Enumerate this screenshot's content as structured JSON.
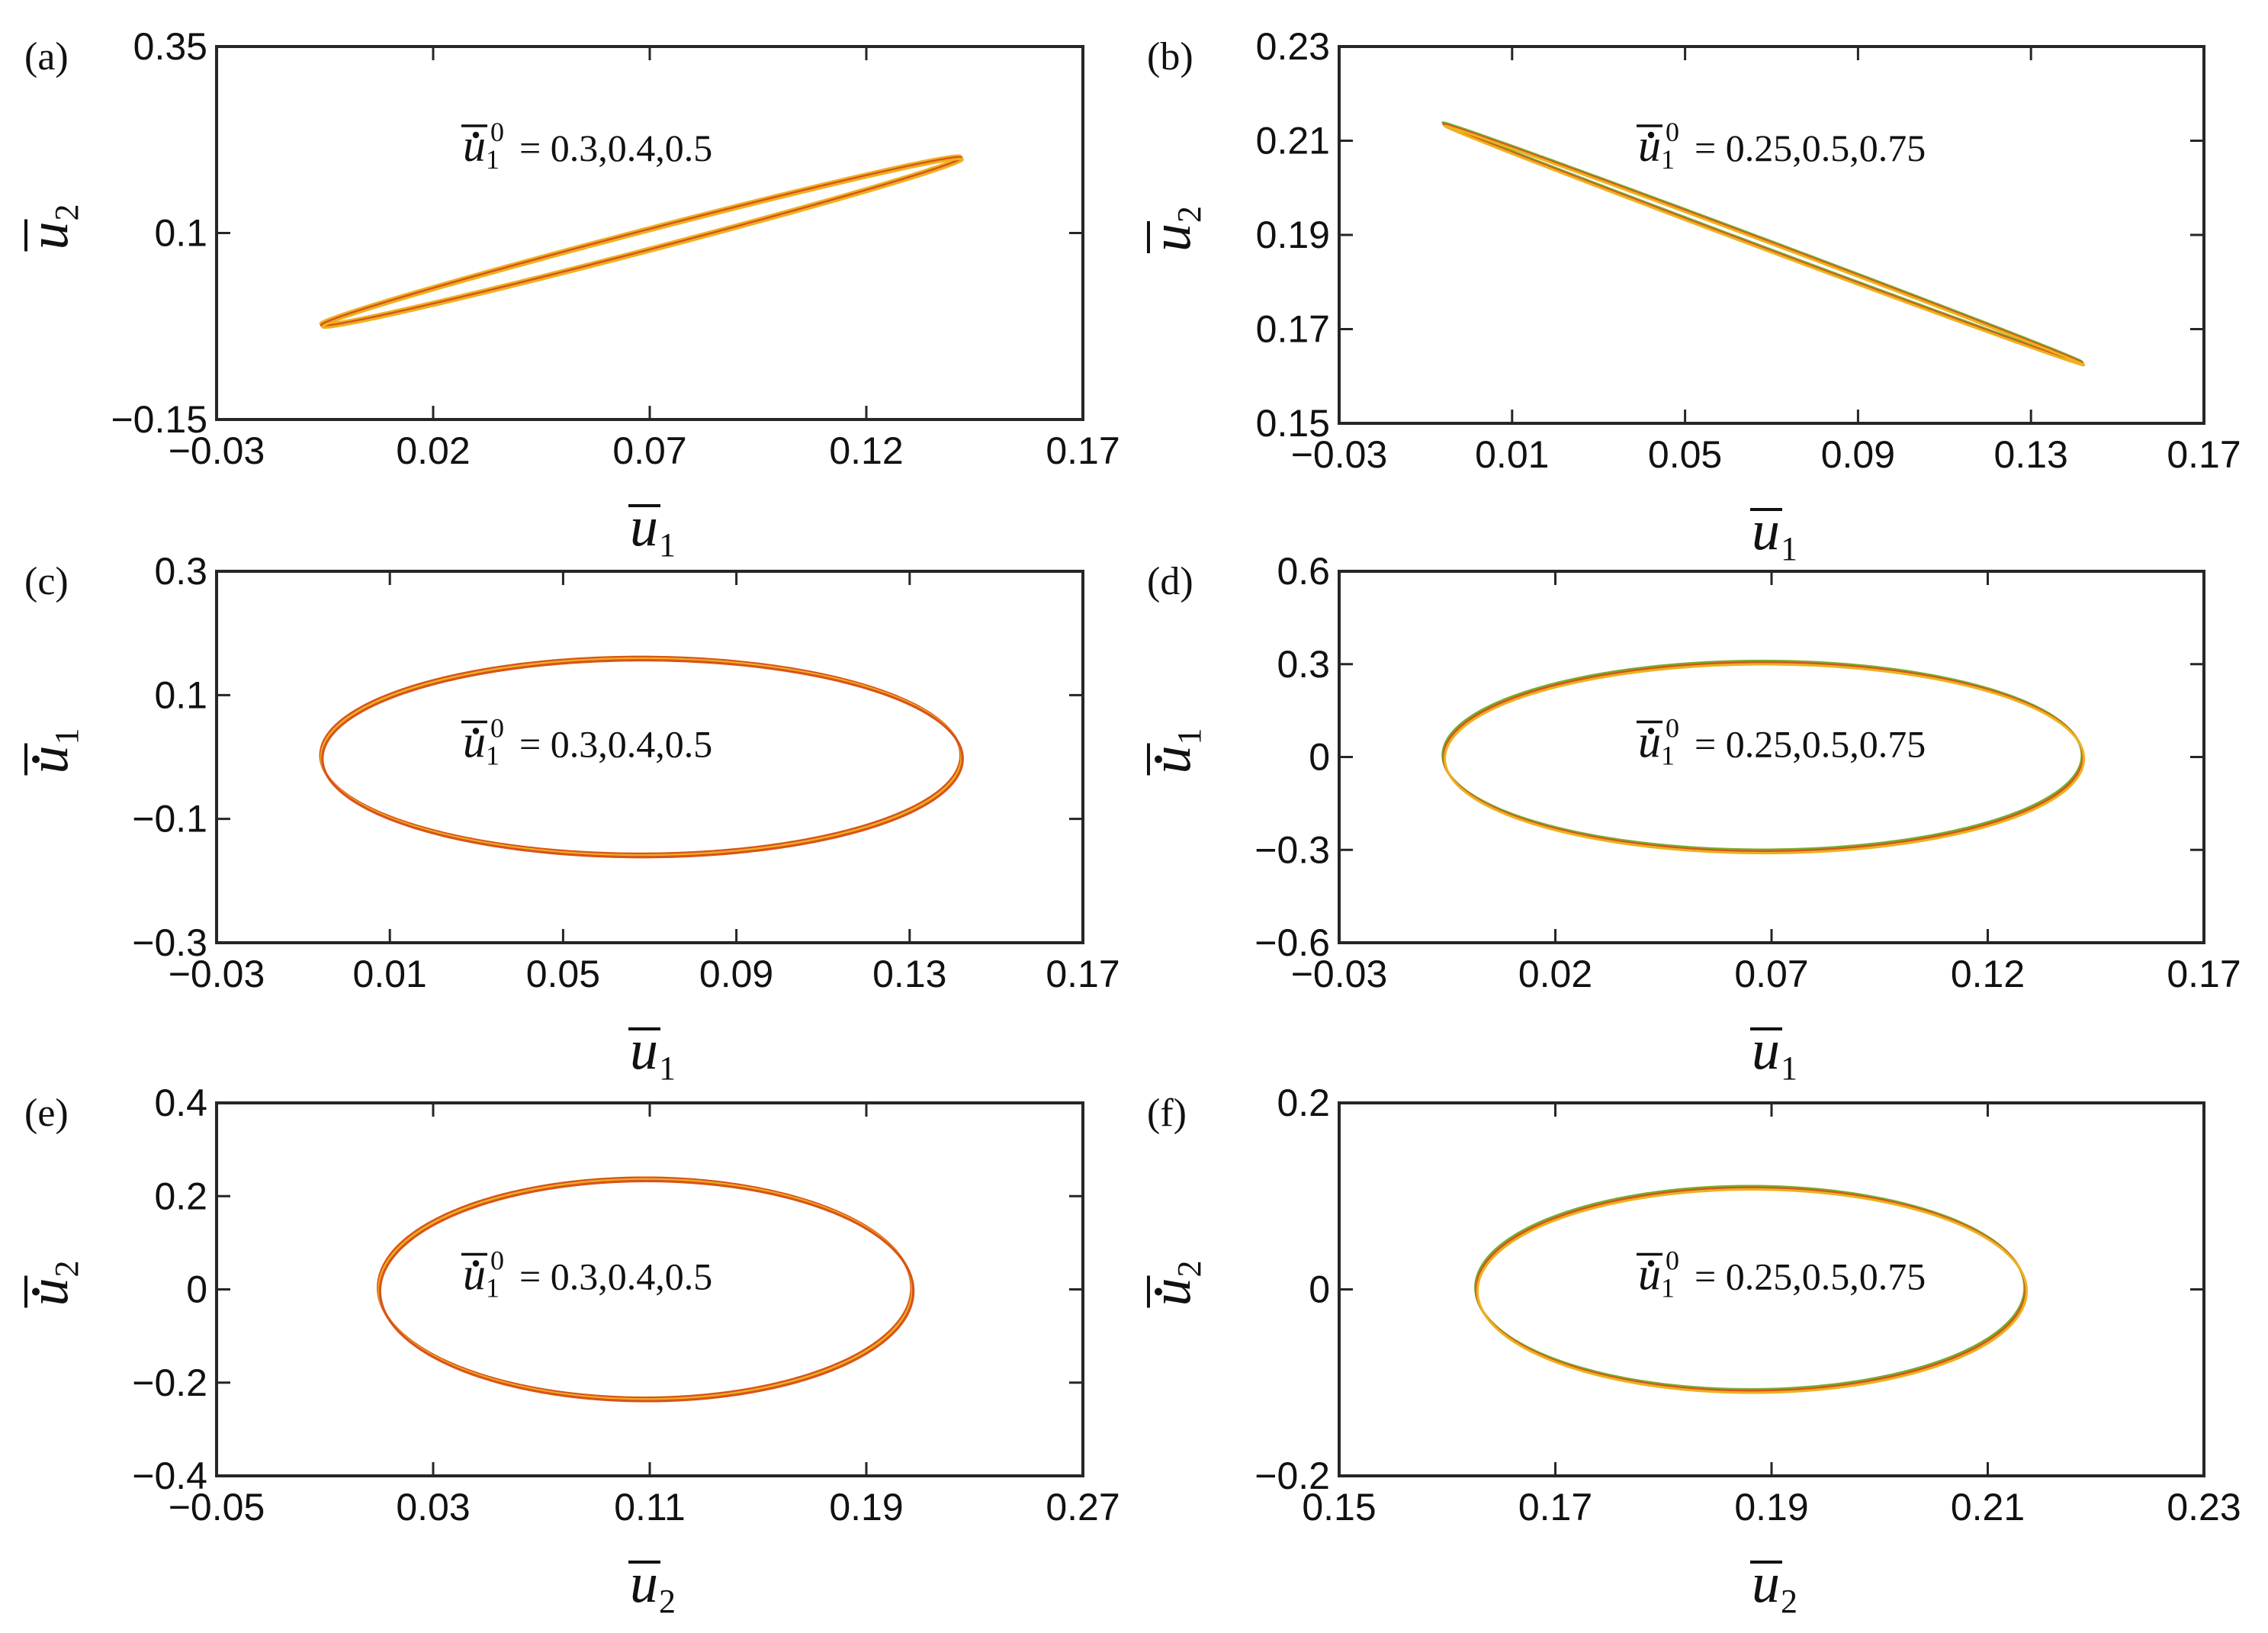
{
  "colors": {
    "series": [
      "#EDB120",
      "#D95319",
      "#77AC30"
    ],
    "axis": "#262626"
  },
  "chart_data": [
    {
      "id": "a",
      "panel_label": "(a)",
      "type": "line",
      "xlabel": {
        "var": "u",
        "sub": "1",
        "bar": true,
        "dot": false
      },
      "ylabel": {
        "var": "u",
        "sub": "2",
        "bar": true,
        "dot": false
      },
      "xlim": [
        -0.03,
        0.17
      ],
      "ylim": [
        -0.15,
        0.35
      ],
      "xticks": [
        -0.03,
        0.02,
        0.07,
        0.12,
        0.17
      ],
      "xtick_labels": [
        "−0.03",
        "0.02",
        "0.07",
        "0.12",
        "0.17"
      ],
      "yticks": [
        -0.15,
        0.1,
        0.35
      ],
      "ytick_labels": [
        "−0.15",
        "0.1",
        "0.35"
      ],
      "annotation": {
        "var": "u",
        "sup": "0",
        "sub": "1",
        "text": "= 0.3,0.4,0.5"
      },
      "curve": {
        "kind": "ellipse",
        "cx": 0.0681,
        "cy": 0.0885,
        "a": 0.0739,
        "b": 0.113,
        "phase_deg": 7,
        "yscale": 1,
        "ysub": 0
      },
      "series": [
        {
          "name": "0.3",
          "color": "#EDB120"
        },
        {
          "name": "0.4",
          "color": "#D95319"
        },
        {
          "name": "0.5",
          "color": "#EDB120"
        }
      ]
    },
    {
      "id": "b",
      "panel_label": "(b)",
      "type": "line",
      "xlabel": {
        "var": "u",
        "sub": "1",
        "bar": true,
        "dot": false
      },
      "ylabel": {
        "var": "u",
        "sub": "2",
        "bar": true,
        "dot": false
      },
      "xlim": [
        -0.03,
        0.17
      ],
      "ylim": [
        0.15,
        0.23
      ],
      "xticks": [
        -0.03,
        0.01,
        0.05,
        0.09,
        0.13,
        0.17
      ],
      "xtick_labels": [
        "−0.03",
        "0.01",
        "0.05",
        "0.09",
        "0.13",
        "0.17"
      ],
      "yticks": [
        0.15,
        0.17,
        0.19,
        0.21,
        0.23
      ],
      "ytick_labels": [
        "0.15",
        "0.17",
        "0.19",
        "0.21",
        "0.23"
      ],
      "annotation": {
        "var": "u",
        "sup": "0",
        "sub": "1",
        "text": "= 0.25,0.5,0.75"
      },
      "curve": {
        "kind": "ellipse",
        "cx": 0.0681,
        "cy": 0.1881,
        "a": 0.0739,
        "b": 0.0254,
        "phase_deg": 178,
        "yscale": 1,
        "ysub": 0
      },
      "series": [
        {
          "name": "0.25",
          "color": "#77AC30"
        },
        {
          "name": "0.5",
          "color": "#D95319"
        },
        {
          "name": "0.75",
          "color": "#EDB120"
        }
      ]
    },
    {
      "id": "c",
      "panel_label": "(c)",
      "type": "line",
      "xlabel": {
        "var": "u",
        "sub": "1",
        "bar": true,
        "dot": false
      },
      "ylabel": {
        "var": "u",
        "sub": "1",
        "bar": true,
        "dot": true
      },
      "xlim": [
        -0.03,
        0.17
      ],
      "ylim": [
        -0.3,
        0.3
      ],
      "xticks": [
        -0.03,
        0.01,
        0.05,
        0.09,
        0.13,
        0.17
      ],
      "xtick_labels": [
        "−0.03",
        "0.01",
        "0.05",
        "0.09",
        "0.13",
        "0.17"
      ],
      "yticks": [
        -0.3,
        -0.1,
        0.1,
        0.3
      ],
      "ytick_labels": [
        "−0.3",
        "−0.1",
        "0.1",
        "0.3"
      ],
      "annotation": {
        "var": "u",
        "sup": "0",
        "sub": "1",
        "text": "= 0.3,0.4,0.5"
      },
      "curve": {
        "kind": "ellipse",
        "cx": 0.0681,
        "cy": 0,
        "a": 0.0739,
        "b": 0.159,
        "phase_deg": 90,
        "yscale": 0,
        "ysub": 0
      },
      "series": [
        {
          "name": "0.3",
          "color": "#D95319"
        },
        {
          "name": "0.4",
          "color": "#EDB120"
        },
        {
          "name": "0.5",
          "color": "#D95319"
        }
      ]
    },
    {
      "id": "d",
      "panel_label": "(d)",
      "type": "line",
      "xlabel": {
        "var": "u",
        "sub": "1",
        "bar": true,
        "dot": false
      },
      "ylabel": {
        "var": "u",
        "sub": "1",
        "bar": true,
        "dot": true
      },
      "xlim": [
        -0.03,
        0.17
      ],
      "ylim": [
        -0.6,
        0.6
      ],
      "xticks": [
        -0.03,
        0.02,
        0.07,
        0.12,
        0.17
      ],
      "xtick_labels": [
        "−0.03",
        "0.02",
        "0.07",
        "0.12",
        "0.17"
      ],
      "yticks": [
        -0.6,
        -0.3,
        0,
        0.3,
        0.6
      ],
      "ytick_labels": [
        "−0.6",
        "−0.3",
        "0",
        "0.3",
        "0.6"
      ],
      "annotation": {
        "var": "u",
        "sup": "0",
        "sub": "1",
        "text": "= 0.25,0.5,0.75"
      },
      "curve": {
        "kind": "ellipse",
        "cx": 0.0681,
        "cy": 0,
        "a": 0.0739,
        "b": 0.305,
        "phase_deg": 90,
        "yscale": 0,
        "ysub": 0
      },
      "series": [
        {
          "name": "0.25",
          "color": "#77AC30"
        },
        {
          "name": "0.5",
          "color": "#D95319"
        },
        {
          "name": "0.75",
          "color": "#EDB120"
        }
      ]
    },
    {
      "id": "e",
      "panel_label": "(e)",
      "type": "line",
      "xlabel": {
        "var": "u",
        "sub": "2",
        "bar": true,
        "dot": false
      },
      "ylabel": {
        "var": "u",
        "sub": "2",
        "bar": true,
        "dot": true
      },
      "xlim": [
        -0.05,
        0.27
      ],
      "ylim": [
        -0.4,
        0.4
      ],
      "xticks": [
        -0.05,
        0.03,
        0.11,
        0.19,
        0.27
      ],
      "xtick_labels": [
        "−0.05",
        "0.03",
        "0.11",
        "0.19",
        "0.27"
      ],
      "yticks": [
        -0.4,
        -0.2,
        0,
        0.2,
        0.4
      ],
      "ytick_labels": [
        "−0.4",
        "−0.2",
        "0",
        "0.2",
        "0.4"
      ],
      "annotation": {
        "var": "u",
        "sup": "0",
        "sub": "1",
        "text": "= 0.3,0.4,0.5"
      },
      "curve": {
        "kind": "ellipse",
        "cx": 0.1085,
        "cy": 0,
        "a": 0.0985,
        "b": 0.236,
        "phase_deg": 90,
        "yscale": 0,
        "ysub": 0
      },
      "series": [
        {
          "name": "0.3",
          "color": "#D95319"
        },
        {
          "name": "0.4",
          "color": "#EDB120"
        },
        {
          "name": "0.5",
          "color": "#D95319"
        }
      ]
    },
    {
      "id": "f",
      "panel_label": "(f)",
      "type": "line",
      "xlabel": {
        "var": "u",
        "sub": "2",
        "bar": true,
        "dot": false
      },
      "ylabel": {
        "var": "u",
        "sub": "2",
        "bar": true,
        "dot": true
      },
      "xlim": [
        0.15,
        0.23
      ],
      "ylim": [
        -0.2,
        0.2
      ],
      "xticks": [
        0.15,
        0.17,
        0.19,
        0.21,
        0.23
      ],
      "xtick_labels": [
        "0.15",
        "0.17",
        "0.19",
        "0.21",
        "0.23"
      ],
      "yticks": [
        -0.2,
        0,
        0.2
      ],
      "ytick_labels": [
        "−0.2",
        "0",
        "0.2"
      ],
      "annotation": {
        "var": "u",
        "sup": "0",
        "sub": "1",
        "text": "= 0.25,0.5,0.75"
      },
      "curve": {
        "kind": "ellipse",
        "cx": 0.1881,
        "cy": 0,
        "a": 0.0254,
        "b": 0.109,
        "phase_deg": 90,
        "yscale": 0,
        "ysub": 0
      },
      "series": [
        {
          "name": "0.25",
          "color": "#77AC30"
        },
        {
          "name": "0.5",
          "color": "#D95319"
        },
        {
          "name": "0.75",
          "color": "#EDB120"
        }
      ]
    }
  ]
}
